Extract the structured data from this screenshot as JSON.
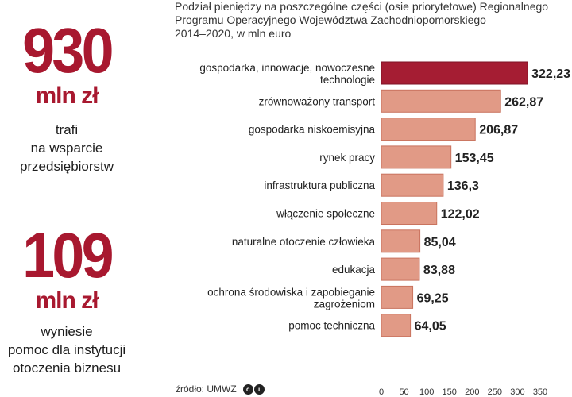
{
  "stats": [
    {
      "number": "930",
      "unit": "mln zł",
      "desc": [
        "trafi",
        "na wsparcie",
        "przedsiębiorstw"
      ]
    },
    {
      "number": "109",
      "unit": "mln zł",
      "desc": [
        "wyniesie",
        "pomoc dla instytucji",
        "otoczenia biznesu"
      ]
    }
  ],
  "colors": {
    "accent": "#a8182f",
    "highlight_bar": "#a51d33",
    "bar": "#e19a86",
    "bar_edge": "#c9735e"
  },
  "chart_data": {
    "type": "bar",
    "orientation": "horizontal",
    "title_lines": [
      "Podział pieniędzy na poszczególne części (osie priorytetowe) Regionalnego",
      "Programu Operacyjnego Województwa Zachodniopomorskiego",
      "2014–2020, w mln euro"
    ],
    "categories": [
      [
        "gospodarka, innowacje, nowoczesne",
        "technologie"
      ],
      [
        "zrównoważony transport"
      ],
      [
        "gospodarka niskoemisyjna"
      ],
      [
        "rynek pracy"
      ],
      [
        "infrastruktura publiczna"
      ],
      [
        "włączenie społeczne"
      ],
      [
        "naturalne otoczenie człowieka"
      ],
      [
        "edukacja"
      ],
      [
        "ochrona środowiska i zapobieganie",
        "zagrożeniom"
      ],
      [
        "pomoc techniczna"
      ]
    ],
    "values": [
      322.23,
      262.87,
      206.87,
      153.45,
      136.3,
      122.02,
      85.04,
      83.88,
      69.25,
      64.05
    ],
    "value_labels": [
      "322,23",
      "262,87",
      "206,87",
      "153,45",
      "136,3",
      "122,02",
      "85,04",
      "83,88",
      "69,25",
      "64,05"
    ],
    "highlight_index": 0,
    "xlim": [
      0,
      350
    ],
    "x_ticks": [
      0,
      50,
      100,
      150,
      200,
      250,
      300,
      350
    ],
    "xlabel": "",
    "ylabel": "",
    "grid": false
  },
  "source": {
    "text": "źródło: UMWZ",
    "icon": "cc-by-icon",
    "icon_glyphs": [
      "c",
      "i"
    ]
  }
}
